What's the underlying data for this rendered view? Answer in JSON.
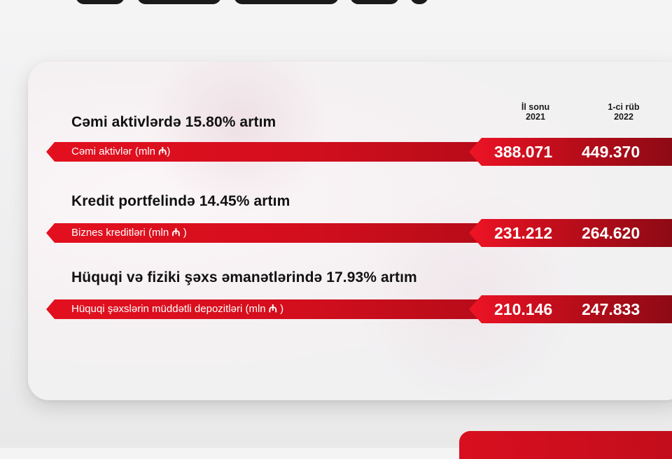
{
  "headers": {
    "col1": [
      "İl sonu",
      "2021"
    ],
    "col2": [
      "1-ci rüb",
      "2022"
    ]
  },
  "sections": [
    {
      "title": "Cəmi aktivlərdə 15.80% artım",
      "label": "Cəmi aktivlər (mln ",
      "label_currency": "₼",
      "label_close": ")",
      "value_2021": "388.071",
      "value_2022": "449.370"
    },
    {
      "title": "Kredit portfelində 14.45% artım",
      "label": "Biznes kreditləri (mln ",
      "label_currency": "₼",
      "label_close": " )",
      "value_2021": "231.212",
      "value_2022": "264.620"
    },
    {
      "title": "Hüquqi və fiziki şəxs əmanətlərində 17.93% artım",
      "label": "Hüquqi şəxslərin müddətli depozitləri (mln ",
      "label_currency": "₼",
      "label_close": " )",
      "value_2021": "210.146",
      "value_2022": "247.833"
    }
  ],
  "colors": {
    "accent_red": "#e3101f",
    "dark_red": "#8e0a14",
    "text_dark": "#111111"
  }
}
